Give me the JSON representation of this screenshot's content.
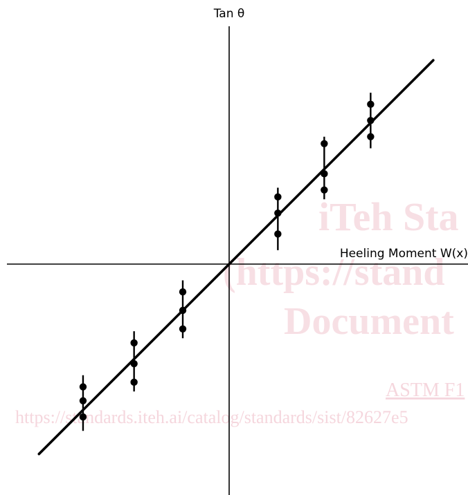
{
  "chart_data": {
    "type": "scatter",
    "title": "",
    "xlabel": "Heeling Moment W(x)",
    "ylabel": "Tan θ",
    "xlim": [
      -10,
      10
    ],
    "ylim": [
      -10,
      10
    ],
    "grid": false,
    "legend": "none",
    "fit_line": {
      "slope": 1,
      "intercept": 0,
      "x_range": [
        -8.2,
        8.8
      ]
    },
    "groups": [
      {
        "x": -6.3,
        "points": [
          -5.3,
          -5.9,
          -6.6
        ],
        "bar": [
          -4.8,
          -7.2
        ]
      },
      {
        "x": -4.1,
        "points": [
          -3.4,
          -4.3,
          -5.1
        ],
        "bar": [
          -2.9,
          -5.5
        ]
      },
      {
        "x": -2.0,
        "points": [
          -1.2,
          -2.0,
          -2.8
        ],
        "bar": [
          -0.7,
          -3.2
        ]
      },
      {
        "x": 2.1,
        "points": [
          2.9,
          2.2,
          1.3
        ],
        "bar": [
          3.3,
          0.6
        ]
      },
      {
        "x": 4.1,
        "points": [
          5.2,
          3.9,
          3.2
        ],
        "bar": [
          5.5,
          2.8
        ]
      },
      {
        "x": 6.1,
        "points": [
          6.9,
          6.2,
          5.5
        ],
        "bar": [
          7.4,
          5.0
        ]
      }
    ],
    "colors": {
      "ink": "#000000"
    }
  },
  "watermark": {
    "line1": "iTeh Sta",
    "line2": "(https://stand",
    "line3": "Document",
    "line4": "ASTM F1",
    "url": "https://standards.iteh.ai/catalog/standards/sist/82627e5"
  }
}
